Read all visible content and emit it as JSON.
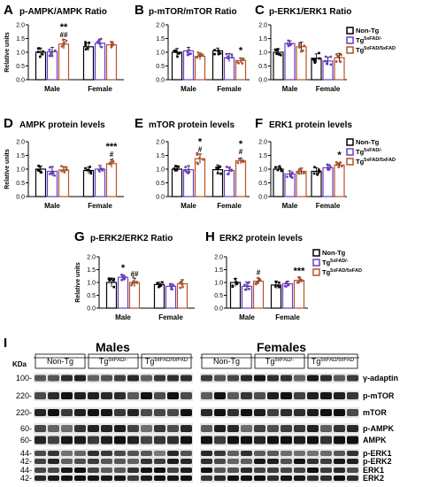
{
  "colors": {
    "nontg": "#000000",
    "tg5x": "#6a3dc8",
    "tgdbl": "#b5522a",
    "bar_fill": "#ffffff"
  },
  "legend": [
    {
      "base": "Non-Tg",
      "sup": ""
    },
    {
      "base": "Tg",
      "sup": "5xFAD/-"
    },
    {
      "base": "Tg",
      "sup": "5xFAD/5xFAD"
    }
  ],
  "legend_small": [
    {
      "base": "Non-Tg",
      "sup": ""
    },
    {
      "base": "Tg",
      "sup": "5xFAD/-"
    },
    {
      "base": "Tg",
      "sup": "5xFAD/5xFAD"
    }
  ],
  "chart_data": [
    {
      "id": "A",
      "panel_label": "A",
      "type": "bar",
      "title": "p-AMPK/AMPK Ratio",
      "ylabel": "Relative units",
      "ylim": [
        0,
        2
      ],
      "yticks": [
        "0.0",
        "0.5",
        "1.0",
        "1.5",
        "2.0"
      ],
      "categories": [
        "Male",
        "Female"
      ],
      "series": [
        {
          "name": "Non-Tg",
          "values": [
            1.0,
            1.2
          ]
        },
        {
          "name": "Tg5xFAD/-",
          "values": [
            1.02,
            1.33
          ]
        },
        {
          "name": "Tg5xFAD/5xFAD",
          "values": [
            1.3,
            1.27
          ]
        }
      ],
      "annotations": [
        {
          "cat": 0,
          "series": 2,
          "lines": [
            "**",
            "##"
          ]
        }
      ]
    },
    {
      "id": "B",
      "panel_label": "B",
      "type": "bar",
      "title": "p-mTOR/mTOR Ratio",
      "ylabel": "",
      "ylim": [
        0,
        2
      ],
      "yticks": [
        "0.0",
        "0.5",
        "1.0",
        "1.5",
        "2.0"
      ],
      "categories": [
        "Male",
        "Female"
      ],
      "series": [
        {
          "name": "Non-Tg",
          "values": [
            1.0,
            1.05
          ]
        },
        {
          "name": "Tg5xFAD/-",
          "values": [
            1.05,
            0.8
          ]
        },
        {
          "name": "Tg5xFAD/5xFAD",
          "values": [
            0.85,
            0.7
          ]
        }
      ],
      "annotations": [
        {
          "cat": 1,
          "series": 2,
          "lines": [
            "*"
          ]
        }
      ]
    },
    {
      "id": "C",
      "panel_label": "C",
      "type": "bar",
      "title": "p-ERK1/ERK1 Ratio",
      "ylabel": "",
      "ylim": [
        0,
        2
      ],
      "yticks": [
        "0.0",
        "0.5",
        "1.0",
        "1.5",
        "2.0"
      ],
      "categories": [
        "Male",
        "Female"
      ],
      "series": [
        {
          "name": "Non-Tg",
          "values": [
            1.0,
            0.78
          ]
        },
        {
          "name": "Tg5xFAD/-",
          "values": [
            1.32,
            0.68
          ]
        },
        {
          "name": "Tg5xFAD/5xFAD",
          "values": [
            1.2,
            0.8
          ]
        }
      ],
      "annotations": []
    },
    {
      "id": "D",
      "panel_label": "D",
      "type": "bar",
      "title": "AMPK protein levels",
      "ylabel": "Relative units",
      "ylim": [
        0,
        2
      ],
      "yticks": [
        "0.0",
        "0.5",
        "1.0",
        "1.5",
        "2.0"
      ],
      "categories": [
        "Male",
        "Female"
      ],
      "series": [
        {
          "name": "Non-Tg",
          "values": [
            1.0,
            0.95
          ]
        },
        {
          "name": "Tg5xFAD/-",
          "values": [
            0.92,
            1.0
          ]
        },
        {
          "name": "Tg5xFAD/5xFAD",
          "values": [
            0.97,
            1.2
          ]
        }
      ],
      "annotations": [
        {
          "cat": 1,
          "series": 2,
          "lines": [
            "***",
            "#"
          ]
        }
      ]
    },
    {
      "id": "E",
      "panel_label": "E",
      "type": "bar",
      "title": "mTOR protein levels",
      "ylabel": "",
      "ylim": [
        0,
        2
      ],
      "yticks": [
        "0.0",
        "0.5",
        "1.0",
        "1.5",
        "2.0"
      ],
      "categories": [
        "Male",
        "Female"
      ],
      "series": [
        {
          "name": "Non-Tg",
          "values": [
            1.0,
            0.98
          ]
        },
        {
          "name": "Tg5xFAD/-",
          "values": [
            0.98,
            0.95
          ]
        },
        {
          "name": "Tg5xFAD/5xFAD",
          "values": [
            1.38,
            1.3
          ]
        }
      ],
      "annotations": [
        {
          "cat": 0,
          "series": 2,
          "lines": [
            "*",
            "#"
          ]
        },
        {
          "cat": 1,
          "series": 2,
          "lines": [
            "*",
            "#"
          ]
        }
      ]
    },
    {
      "id": "F",
      "panel_label": "F",
      "type": "bar",
      "title": "ERK1 protein levels",
      "ylabel": "",
      "ylim": [
        0,
        2
      ],
      "yticks": [
        "0.0",
        "0.5",
        "1.0",
        "1.5",
        "2.0"
      ],
      "categories": [
        "Male",
        "Female"
      ],
      "series": [
        {
          "name": "Non-Tg",
          "values": [
            1.0,
            0.92
          ]
        },
        {
          "name": "Tg5xFAD/-",
          "values": [
            0.82,
            1.05
          ]
        },
        {
          "name": "Tg5xFAD/5xFAD",
          "values": [
            0.92,
            1.15
          ]
        }
      ],
      "annotations": [
        {
          "cat": 1,
          "series": 2,
          "lines": [
            "*"
          ]
        }
      ]
    },
    {
      "id": "G",
      "panel_label": "G",
      "type": "bar",
      "title": "p-ERK2/ERK2 Ratio",
      "ylabel": "Relative units",
      "ylim": [
        0,
        2
      ],
      "yticks": [
        "0.0",
        "0.5",
        "1.0",
        "1.5",
        "2.0"
      ],
      "categories": [
        "Male",
        "Female"
      ],
      "series": [
        {
          "name": "Non-Tg",
          "values": [
            1.0,
            0.92
          ]
        },
        {
          "name": "Tg5xFAD/-",
          "values": [
            1.2,
            0.85
          ]
        },
        {
          "name": "Tg5xFAD/5xFAD",
          "values": [
            1.0,
            0.95
          ]
        }
      ],
      "annotations": [
        {
          "cat": 0,
          "series": 1,
          "lines": [
            "*"
          ]
        },
        {
          "cat": 0,
          "series": 2,
          "lines": [
            "##"
          ]
        }
      ]
    },
    {
      "id": "H",
      "panel_label": "H",
      "type": "bar",
      "title": "ERK2 protein levels",
      "ylabel": "",
      "ylim": [
        0,
        2
      ],
      "yticks": [
        "0.0",
        "0.5",
        "1.0",
        "1.5",
        "2.0"
      ],
      "categories": [
        "Male",
        "Female"
      ],
      "series": [
        {
          "name": "Non-Tg",
          "values": [
            1.0,
            0.9
          ]
        },
        {
          "name": "Tg5xFAD/-",
          "values": [
            0.85,
            0.95
          ]
        },
        {
          "name": "Tg5xFAD/5xFAD",
          "values": [
            1.05,
            1.08
          ]
        }
      ],
      "annotations": [
        {
          "cat": 0,
          "series": 2,
          "lines": [
            "#"
          ]
        },
        {
          "cat": 1,
          "series": 2,
          "lines": [
            "***"
          ]
        }
      ]
    }
  ],
  "blot": {
    "panel_label": "I",
    "males": "Males",
    "females": "Females",
    "kda": "KDa",
    "groups": [
      {
        "base": "Non-Tg",
        "sup": ""
      },
      {
        "base": "Tg",
        "sup": "5xFAD/-"
      },
      {
        "base": "Tg",
        "sup": "5xFAD/5xFAD"
      }
    ],
    "markers": [
      "100-",
      "220-",
      "220-",
      "60-",
      "60-",
      "44-",
      "42-",
      "44-",
      "42-"
    ],
    "rows": [
      {
        "label": "γ-adaptin",
        "intensity": 0.8
      },
      {
        "label": "p-mTOR",
        "intensity": 0.85
      },
      {
        "label": "mTOR",
        "intensity": 0.9
      },
      {
        "label": "p-AMPK",
        "intensity": 0.75
      },
      {
        "label": "AMPK",
        "intensity": 0.95
      },
      {
        "label": "p-ERK1",
        "intensity": 0.7
      },
      {
        "label": "p-ERK2",
        "intensity": 0.8
      },
      {
        "label": "ERK1",
        "intensity": 0.85
      },
      {
        "label": "ERK2",
        "intensity": 0.95
      }
    ]
  }
}
